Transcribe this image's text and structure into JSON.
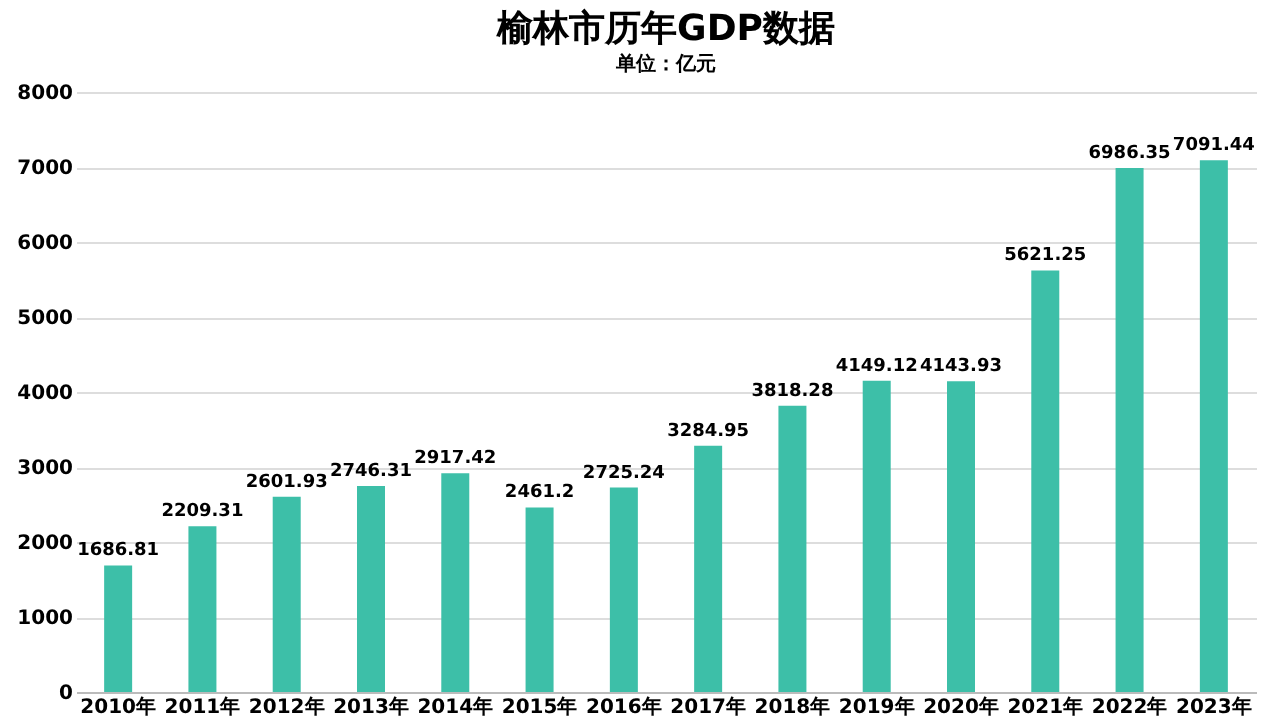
{
  "chart_data": {
    "type": "bar",
    "title": "榆林市历年GDP数据",
    "subtitle": "单位：亿元",
    "categories": [
      "2010年",
      "2011年",
      "2012年",
      "2013年",
      "2014年",
      "2015年",
      "2016年",
      "2017年",
      "2018年",
      "2019年",
      "2020年",
      "2021年",
      "2022年",
      "2023年"
    ],
    "values": [
      1686.81,
      2209.31,
      2601.93,
      2746.31,
      2917.42,
      2461.2,
      2725.24,
      3284.95,
      3818.28,
      4149.12,
      4143.93,
      5621.25,
      6986.35,
      7091.44
    ],
    "color": "#3dbfa8",
    "ylim": [
      0,
      8000
    ],
    "yticks": [
      0,
      1000,
      2000,
      3000,
      4000,
      5000,
      6000,
      7000,
      8000
    ],
    "grid": "y",
    "data_labels": true
  }
}
